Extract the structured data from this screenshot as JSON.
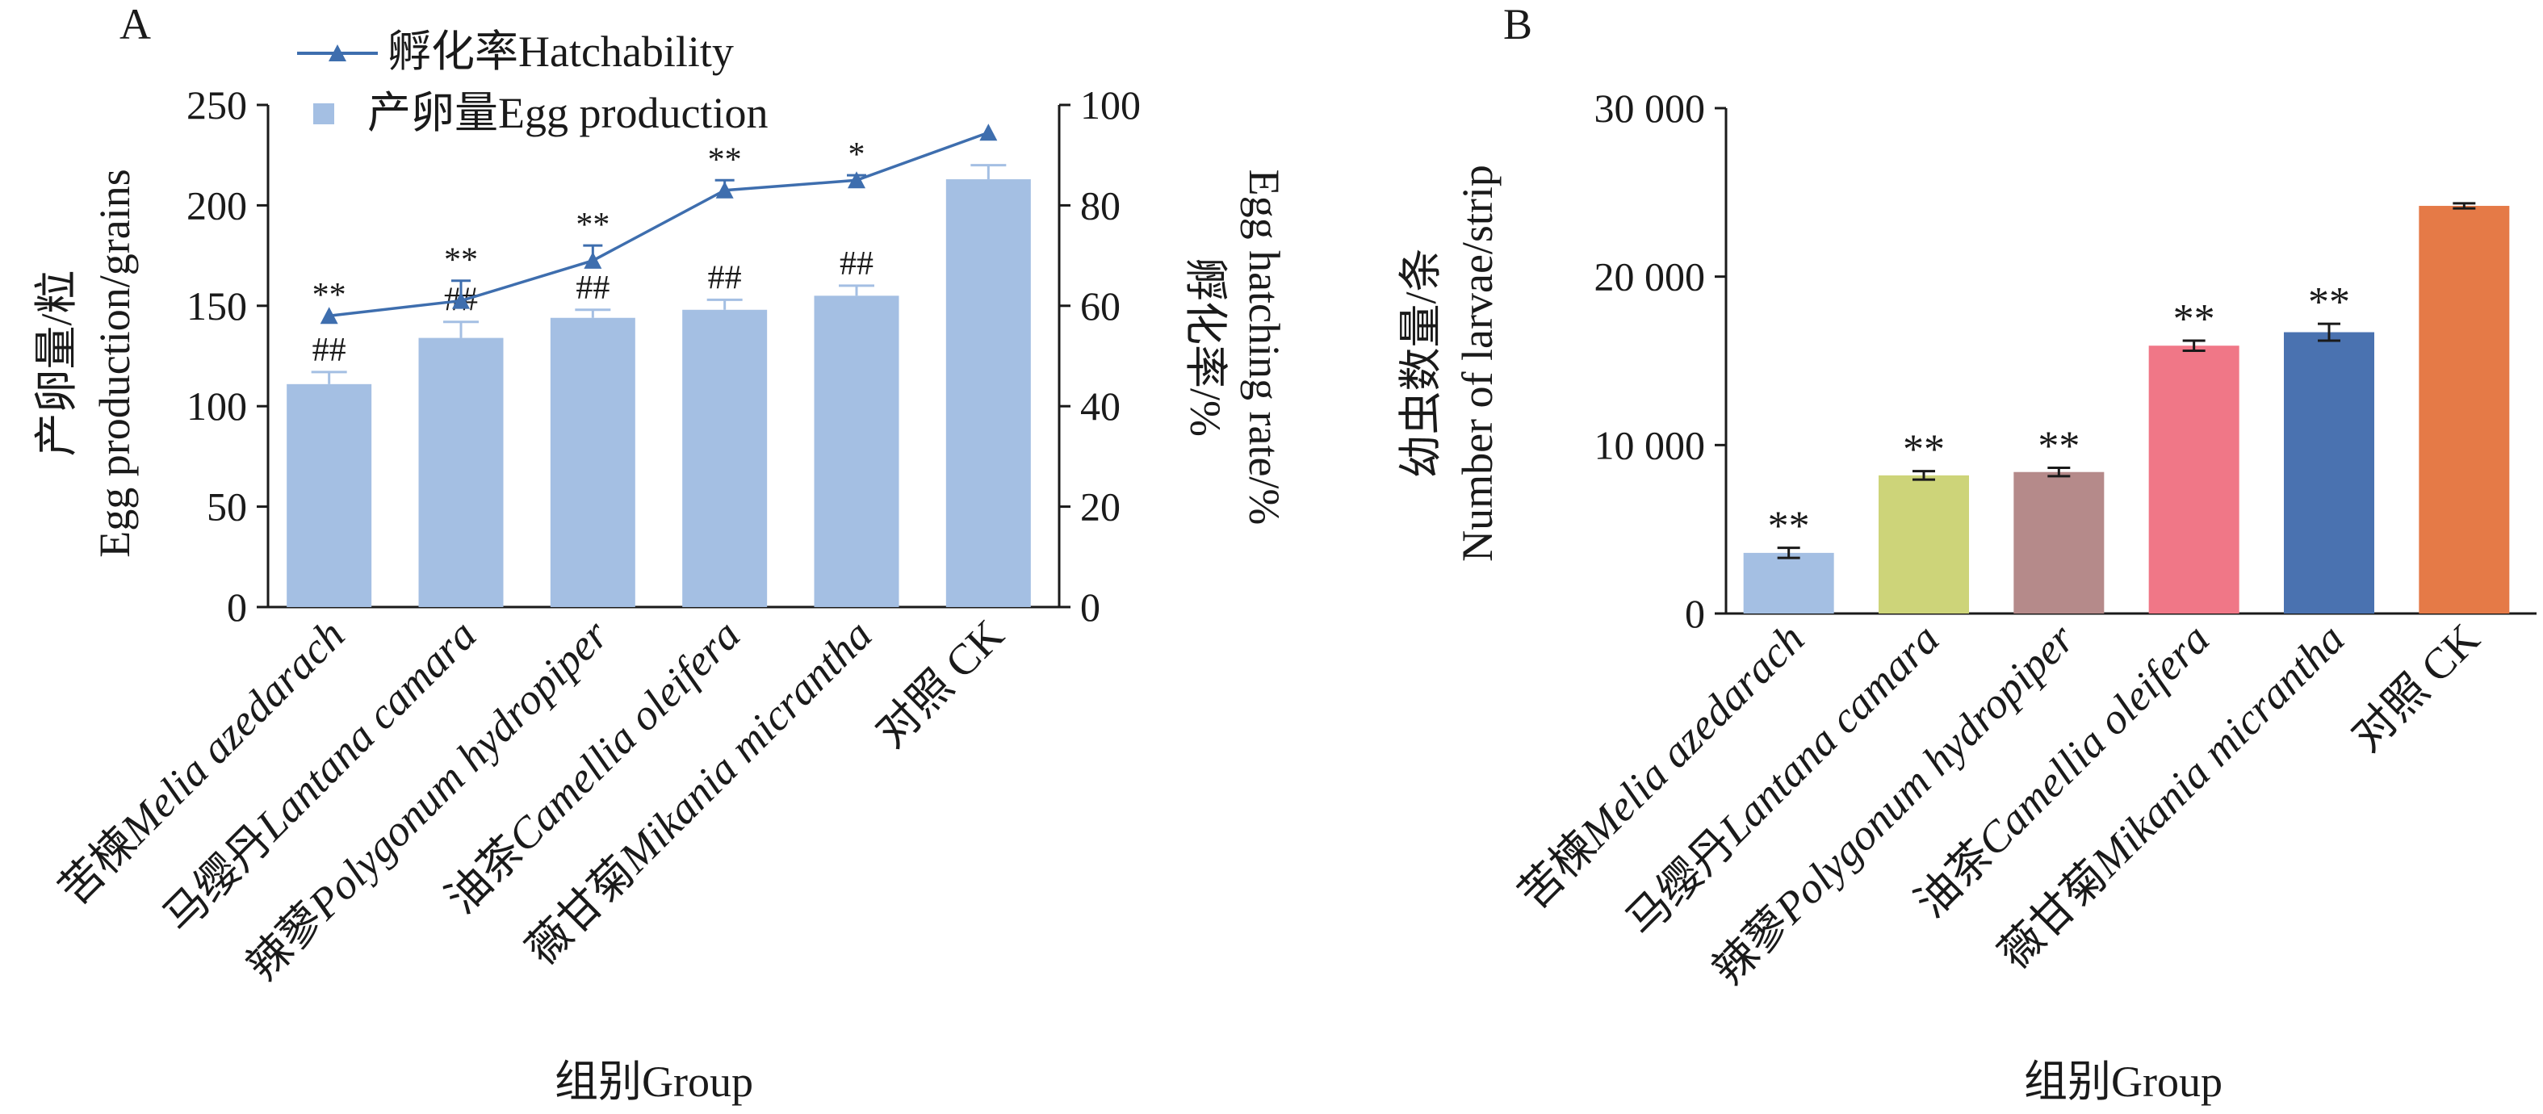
{
  "chart_data": [
    {
      "panel": "A",
      "type": "bar",
      "xlabel": "组别Group",
      "ylabel": [
        "产卵量/粒",
        "Egg production/grains"
      ],
      "y2label": [
        "孵化率/%",
        "Egg hatching rate/%"
      ],
      "ylim": [
        0,
        250
      ],
      "yticks": [
        "0",
        "50",
        "100",
        "150",
        "200",
        "250"
      ],
      "y2lim": [
        0,
        100
      ],
      "y2ticks": [
        "0",
        "20",
        "40",
        "60",
        "80",
        "100"
      ],
      "categories": [
        {
          "cn": "苦楝",
          "latin": "Melia azedarach"
        },
        {
          "cn": "马缨丹",
          "latin": "Lantana camara"
        },
        {
          "cn": "辣蓼",
          "latin": "Polygonum hydropiper"
        },
        {
          "cn": "油茶",
          "latin": "Camellia oleifera"
        },
        {
          "cn": "薇甘菊",
          "latin": "Mikania micrantha"
        },
        {
          "cn": "对照 CK",
          "latin": ""
        }
      ],
      "legend_position": "top-left",
      "series": [
        {
          "name": "产卵量Egg production",
          "kind": "bar",
          "color": "#a4bfe3",
          "values": [
            111,
            134,
            144,
            148,
            155,
            213
          ],
          "errors": [
            6,
            8,
            4,
            5,
            5,
            7
          ],
          "labels": [
            "##",
            "##",
            "##",
            "##",
            "##",
            ""
          ]
        },
        {
          "name": "孵化率Hatchability",
          "kind": "line",
          "axis": "right",
          "color": "#3e6eae",
          "values": [
            58,
            61,
            69,
            83,
            85,
            94.5
          ],
          "errors": [
            0,
            4,
            3,
            2,
            1,
            0
          ],
          "labels": [
            "**",
            "**",
            "**",
            "**",
            "*",
            ""
          ]
        }
      ]
    },
    {
      "panel": "B",
      "type": "bar",
      "xlabel": "组别Group",
      "ylabel": [
        "幼虫数量/条",
        "Number of larvae/strip"
      ],
      "ylim": [
        0,
        30000
      ],
      "yticks": [
        "0",
        "10 000",
        "20 000",
        "30 000"
      ],
      "categories": [
        {
          "cn": "苦楝",
          "latin": "Melia azedarach"
        },
        {
          "cn": "马缨丹",
          "latin": "Lantana camara"
        },
        {
          "cn": "辣蓼",
          "latin": "Polygonum hydropiper"
        },
        {
          "cn": "油茶",
          "latin": "Camellia oleifera"
        },
        {
          "cn": "薇甘菊",
          "latin": "Mikania micrantha"
        },
        {
          "cn": "对照 CK",
          "latin": ""
        }
      ],
      "series": [
        {
          "values": [
            3600,
            8200,
            8400,
            15900,
            16700,
            24200
          ],
          "errors": [
            300,
            250,
            250,
            300,
            500,
            150
          ],
          "colors": [
            "#a4bfe3",
            "#cdd479",
            "#b58a8a",
            "#f07787",
            "#4a72b0",
            "#e57a47"
          ],
          "labels": [
            "**",
            "**",
            "**",
            "**",
            "**",
            ""
          ]
        }
      ]
    }
  ]
}
